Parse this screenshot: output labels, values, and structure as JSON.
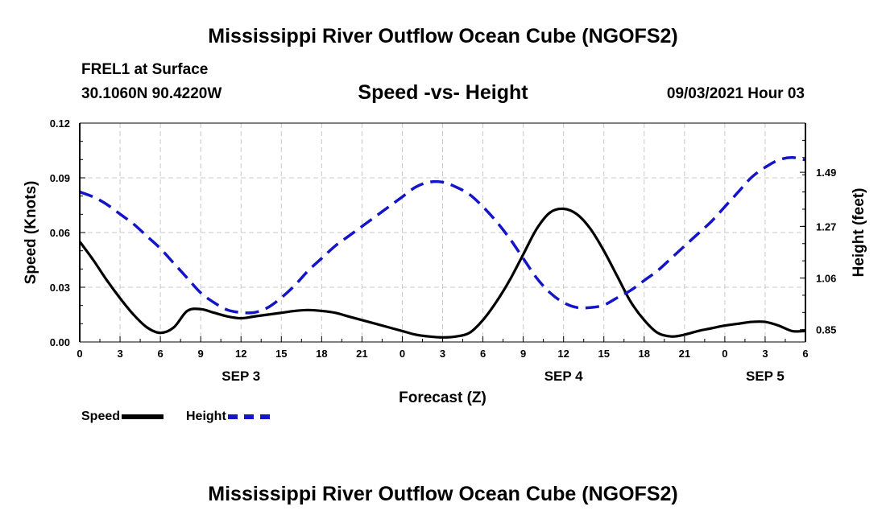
{
  "header": {
    "title_top": "Mississippi River Outflow Ocean Cube (NGOFS2)",
    "title_bottom": "Mississippi River Outflow Ocean Cube (NGOFS2)",
    "station": "FREL1 at Surface",
    "coords": "30.1060N  90.4220W",
    "datetime": "09/03/2021 Hour 03"
  },
  "chart_data": {
    "type": "line",
    "title": "Speed -vs- Height",
    "xlabel": "Forecast (Z)",
    "ylabel_left": "Speed (Knots)",
    "ylabel_right": "Height (feet)",
    "x_range_hours": [
      0,
      54
    ],
    "x_tick_step_hours": 3,
    "x_tick_labels": [
      "0",
      "3",
      "6",
      "9",
      "12",
      "15",
      "18",
      "21",
      "0",
      "3",
      "6",
      "9",
      "12",
      "15",
      "18",
      "21",
      "0",
      "3",
      "6"
    ],
    "day_labels": [
      {
        "label": "SEP 3",
        "hour": 12
      },
      {
        "label": "SEP 4",
        "hour": 36
      },
      {
        "label": "SEP 5",
        "hour": 51
      }
    ],
    "ylim_left": [
      0,
      0.12
    ],
    "y_ticks_left": [
      0,
      0.03,
      0.06,
      0.09,
      0.12
    ],
    "y_tick_labels_left": [
      "0.00",
      "0.03",
      "0.06",
      "0.09",
      "0.12"
    ],
    "ylim_right": [
      0.8,
      1.69
    ],
    "y_ticks_right": [
      0.85,
      1.06,
      1.27,
      1.49
    ],
    "y_tick_labels_right": [
      "0.85",
      "1.06",
      "1.27",
      "1.49"
    ],
    "grid": true,
    "series": [
      {
        "name": "Speed",
        "axis": "left",
        "color": "#000000",
        "dashed": false,
        "x": [
          0,
          1,
          2,
          3,
          4,
          5,
          6,
          7,
          8,
          9,
          10,
          11,
          12,
          13,
          14,
          15,
          16,
          17,
          18,
          19,
          20,
          21,
          22,
          23,
          24,
          25,
          26,
          27,
          28,
          29,
          30,
          31,
          32,
          33,
          34,
          35,
          36,
          37,
          38,
          39,
          40,
          41,
          42,
          43,
          44,
          45,
          46,
          47,
          48,
          49,
          50,
          51,
          52,
          53,
          54
        ],
        "values": [
          0.055,
          0.045,
          0.034,
          0.024,
          0.015,
          0.008,
          0.005,
          0.008,
          0.017,
          0.018,
          0.016,
          0.014,
          0.013,
          0.014,
          0.015,
          0.016,
          0.017,
          0.0175,
          0.017,
          0.016,
          0.014,
          0.012,
          0.01,
          0.008,
          0.006,
          0.004,
          0.003,
          0.0025,
          0.003,
          0.005,
          0.012,
          0.022,
          0.034,
          0.048,
          0.062,
          0.071,
          0.073,
          0.07,
          0.062,
          0.05,
          0.036,
          0.022,
          0.012,
          0.005,
          0.003,
          0.004,
          0.006,
          0.0075,
          0.009,
          0.01,
          0.011,
          0.011,
          0.009,
          0.006,
          0.006
        ]
      },
      {
        "name": "Height",
        "axis": "right",
        "color": "#1414c8",
        "dashed": true,
        "x": [
          0,
          1,
          2,
          3,
          4,
          5,
          6,
          7,
          8,
          9,
          10,
          11,
          12,
          13,
          14,
          15,
          16,
          17,
          18,
          19,
          20,
          21,
          22,
          23,
          24,
          25,
          26,
          27,
          28,
          29,
          30,
          31,
          32,
          33,
          34,
          35,
          36,
          37,
          38,
          39,
          40,
          41,
          42,
          43,
          44,
          45,
          46,
          47,
          48,
          49,
          50,
          51,
          52,
          53,
          54
        ],
        "values": [
          1.41,
          1.39,
          1.36,
          1.32,
          1.28,
          1.23,
          1.18,
          1.12,
          1.06,
          1.0,
          0.96,
          0.93,
          0.92,
          0.92,
          0.94,
          0.98,
          1.03,
          1.09,
          1.14,
          1.19,
          1.23,
          1.27,
          1.31,
          1.35,
          1.39,
          1.43,
          1.45,
          1.45,
          1.43,
          1.4,
          1.35,
          1.29,
          1.22,
          1.14,
          1.06,
          1.0,
          0.96,
          0.94,
          0.94,
          0.95,
          0.98,
          1.01,
          1.05,
          1.09,
          1.14,
          1.19,
          1.24,
          1.29,
          1.35,
          1.41,
          1.47,
          1.51,
          1.54,
          1.55,
          1.54
        ]
      }
    ]
  },
  "legend": {
    "speed_label": "Speed",
    "height_label": "Height",
    "speed_color": "#000000",
    "height_color": "#1414c8"
  }
}
